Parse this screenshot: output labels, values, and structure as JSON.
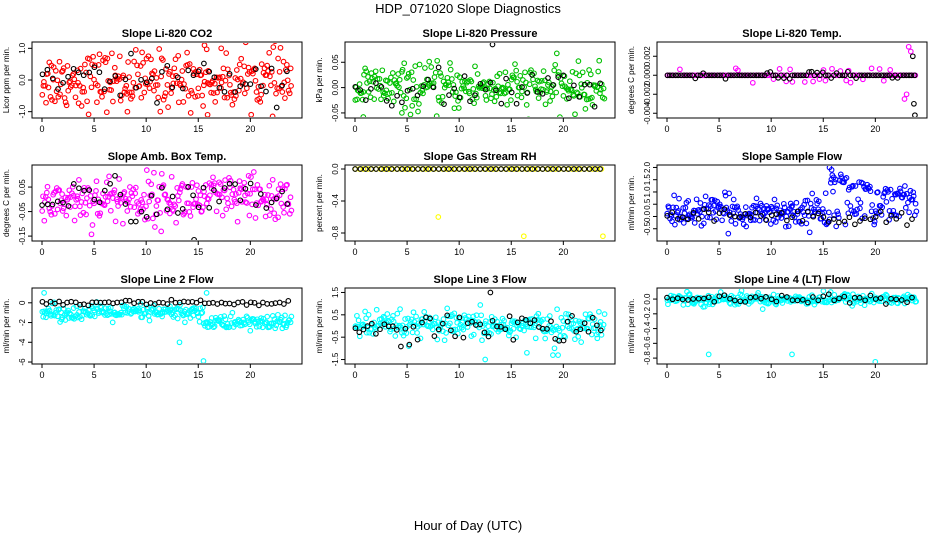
{
  "page": {
    "title": "HDP_071020  Slope Diagnostics",
    "xlabel": "Hour of Day (UTC)"
  },
  "chart_data": [
    {
      "type": "scatter",
      "title": "Slope Li-820 CO2",
      "ylabel": "Licor ppm per min.",
      "xlim": [
        0,
        24
      ],
      "xticks": [
        0,
        5,
        10,
        15,
        20
      ],
      "ylim": [
        -1.2,
        1.2
      ],
      "yticks": [
        -1.0,
        0.0,
        1.0
      ],
      "ytick_labels": [
        "-1.0",
        "0.0",
        "1.0"
      ],
      "series": [
        {
          "color": "#ff0000",
          "n": 280,
          "center": 0,
          "spread": 0.45,
          "outliers": [
            [
              15.6,
              1.1
            ],
            [
              15.9,
              -1.1
            ],
            [
              17.2,
              1.0
            ],
            [
              8.2,
              -1.0
            ]
          ]
        },
        {
          "color": "#000000",
          "n": 48,
          "center": 0,
          "spread": 0.3
        }
      ]
    },
    {
      "type": "scatter",
      "title": "Slope Li-820 Pressure",
      "ylabel": "kPa per min.",
      "xlim": [
        0,
        24
      ],
      "xticks": [
        0,
        5,
        10,
        15,
        20
      ],
      "ylim": [
        -0.06,
        0.09
      ],
      "yticks": [
        -0.05,
        0.0,
        0.05
      ],
      "ytick_labels": [
        "-0.05",
        "0.00",
        "0.05"
      ],
      "series": [
        {
          "color": "#00c000",
          "n": 280,
          "center": 0,
          "spread": 0.022,
          "outliers": [
            [
              0.8,
              -0.058
            ],
            [
              4.5,
              -0.05
            ]
          ]
        },
        {
          "color": "#000000",
          "n": 48,
          "center": -0.005,
          "spread": 0.018,
          "outliers": [
            [
              13.2,
              0.085
            ]
          ]
        }
      ]
    },
    {
      "type": "scatter",
      "title": "Slope Li-820 Temp.",
      "ylabel": "degrees C per min.",
      "xlim": [
        0,
        24
      ],
      "xticks": [
        0,
        5,
        10,
        15,
        20
      ],
      "ylim": [
        -0.0045,
        0.0035
      ],
      "yticks": [
        -0.004,
        -0.002,
        0.0,
        0.002
      ],
      "ytick_labels": [
        "-0.004",
        "-0.002",
        "0.000",
        "0.002"
      ],
      "series": [
        {
          "color": "#ff00ff",
          "n": 120,
          "center": 0,
          "spread": 0.0004,
          "band": true,
          "outliers": [
            [
              23.2,
              0.003
            ],
            [
              23.4,
              0.0025
            ],
            [
              23.0,
              -0.002
            ],
            [
              22.8,
              -0.0025
            ]
          ]
        },
        {
          "color": "#000000",
          "n": 90,
          "center": 0,
          "spread": 0.0002,
          "band": true,
          "outliers": [
            [
              23.8,
              -0.0042
            ],
            [
              23.6,
              0.002
            ],
            [
              23.7,
              -0.003
            ]
          ]
        }
      ]
    },
    {
      "type": "scatter",
      "title": "Slope Amb. Box Temp.",
      "ylabel": "degrees C per min.",
      "xlim": [
        0,
        24
      ],
      "xticks": [
        0,
        5,
        10,
        15,
        20
      ],
      "ylim": [
        -0.17,
        0.14
      ],
      "yticks": [
        -0.15,
        -0.05,
        0.05
      ],
      "ytick_labels": [
        "-0.15",
        "-0.05",
        "0.05"
      ],
      "series": [
        {
          "color": "#ff00ff",
          "n": 280,
          "center": 0,
          "spread": 0.05
        },
        {
          "color": "#000000",
          "n": 48,
          "center": 0,
          "spread": 0.045,
          "outliers": [
            [
              14.6,
              -0.165
            ]
          ]
        }
      ]
    },
    {
      "type": "scatter",
      "title": "Slope Gas Stream RH",
      "ylabel": "percent per min.",
      "xlim": [
        0,
        24
      ],
      "xticks": [
        0,
        5,
        10,
        15,
        20
      ],
      "ylim": [
        -0.9,
        0.05
      ],
      "yticks": [
        -0.8,
        -0.4,
        0.0
      ],
      "ytick_labels": [
        "-0.8",
        "-0.4",
        "0.0"
      ],
      "series": [
        {
          "color": "#ffff00",
          "n": 60,
          "center": 0,
          "spread": 0,
          "band": true,
          "outliers": [
            [
              8.0,
              -0.6
            ],
            [
              16.2,
              -0.84
            ],
            [
              23.8,
              -0.84
            ]
          ]
        },
        {
          "color": "#000000",
          "n": 48,
          "center": 0,
          "spread": 0,
          "band": true
        }
      ]
    },
    {
      "type": "scatter",
      "title": "Slope Sample Flow",
      "ylabel": "ml/min per min.",
      "xlim": [
        0,
        24
      ],
      "xticks": [
        0,
        5,
        10,
        15,
        20
      ],
      "ylim": [
        -1.0,
        2.1
      ],
      "yticks": [
        -0.5,
        0.0,
        0.5,
        1.0,
        1.5,
        2.0
      ],
      "ytick_labels": [
        "-0.5",
        "0.0",
        "0.5",
        "1.0",
        "1.5",
        "2.0"
      ],
      "series": [
        {
          "color": "#0000ff",
          "n": 300,
          "center": 0.2,
          "spread": 0.3,
          "upper_branch": true,
          "outliers": [
            [
              15.6,
              2.0
            ],
            [
              15.8,
              1.9
            ],
            [
              16.0,
              1.6
            ]
          ]
        },
        {
          "color": "#000000",
          "n": 48,
          "center": 0,
          "spread": 0.15
        }
      ]
    },
    {
      "type": "scatter",
      "title": "Slope Line 2 Flow",
      "ylabel": "ml/min per min.",
      "xlim": [
        0,
        24
      ],
      "xticks": [
        0,
        5,
        10,
        15,
        20
      ],
      "ylim": [
        -6.2,
        1.5
      ],
      "yticks": [
        -6,
        -4,
        -2,
        0
      ],
      "ytick_labels": [
        "-6",
        "-4",
        "-2",
        "0"
      ],
      "series": [
        {
          "color": "#00ffff",
          "n": 280,
          "center": -1.5,
          "spread": 0.4,
          "step": true,
          "outliers": [
            [
              0.2,
              1.0
            ],
            [
              15.5,
              -5.9
            ],
            [
              15.8,
              1.0
            ],
            [
              13.2,
              -4.0
            ]
          ]
        },
        {
          "color": "#000000",
          "n": 60,
          "center": 0,
          "spread": 0.15
        }
      ]
    },
    {
      "type": "scatter",
      "title": "Slope Line 3 Flow",
      "ylabel": "ml/min per min.",
      "xlim": [
        0,
        24
      ],
      "xticks": [
        0,
        5,
        10,
        15,
        20
      ],
      "ylim": [
        -1.7,
        1.7
      ],
      "yticks": [
        -1.5,
        -0.5,
        0.5,
        1.5
      ],
      "ytick_labels": [
        "-1.5",
        "-0.5",
        "0.5",
        "1.5"
      ],
      "series": [
        {
          "color": "#00ffff",
          "n": 280,
          "center": 0,
          "spread": 0.3,
          "outliers": [
            [
              12.5,
              -1.5
            ],
            [
              16.5,
              -1.2
            ],
            [
              19.0,
              -1.3
            ],
            [
              19.5,
              -1.3
            ]
          ]
        },
        {
          "color": "#000000",
          "n": 60,
          "center": 0,
          "spread": 0.35,
          "outliers": [
            [
              13.0,
              1.5
            ]
          ]
        }
      ]
    },
    {
      "type": "scatter",
      "title": "Slope Line 4 (LT) Flow",
      "ylabel": "ml/min per min.",
      "xlim": [
        0,
        24
      ],
      "xticks": [
        0,
        5,
        10,
        15,
        20
      ],
      "ylim": [
        -0.88,
        0.15
      ],
      "yticks": [
        -0.8,
        -0.6,
        -0.4,
        -0.2,
        0.0
      ],
      "ytick_labels": [
        "-0.8",
        "-0.6",
        "-0.4",
        "-0.2",
        "0.0"
      ],
      "series": [
        {
          "color": "#00ffff",
          "n": 280,
          "center": 0,
          "spread": 0.04,
          "outliers": [
            [
              4.0,
              -0.75
            ],
            [
              12.0,
              -0.75
            ],
            [
              20.0,
              -0.85
            ]
          ]
        },
        {
          "color": "#000000",
          "n": 48,
          "center": 0,
          "spread": 0.025
        }
      ]
    }
  ]
}
